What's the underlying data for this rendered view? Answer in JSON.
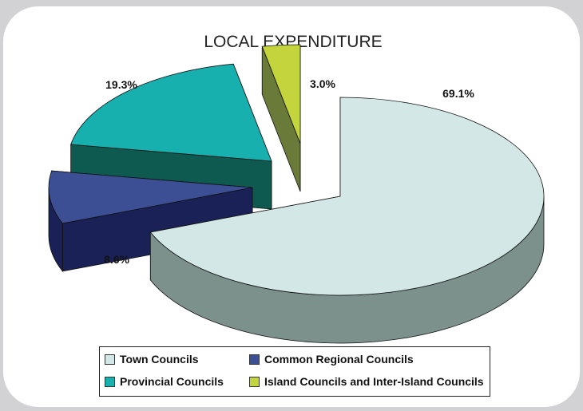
{
  "chart_data": {
    "type": "pie",
    "title": "LOCAL EXPENDITURE",
    "slices": [
      {
        "name": "Town Councils",
        "value": 69.1,
        "label": "69.1%",
        "color": "#d3e8e6",
        "side_color": "#7c908c"
      },
      {
        "name": "Common Regional Councils",
        "value": 8.6,
        "label": "8.6%",
        "color": "#3c4e94",
        "side_color": "#1a2156"
      },
      {
        "name": "Provincial Councils",
        "value": 19.3,
        "label": "19.3%",
        "color": "#17b0ae",
        "side_color": "#0f5a50"
      },
      {
        "name": "Island Councils and Inter-Island Councils",
        "value": 3.0,
        "label": "3.0%",
        "color": "#c4d43c",
        "side_color": "#6a7a38"
      }
    ],
    "legend_position": "bottom",
    "style": "3d-exploded"
  }
}
